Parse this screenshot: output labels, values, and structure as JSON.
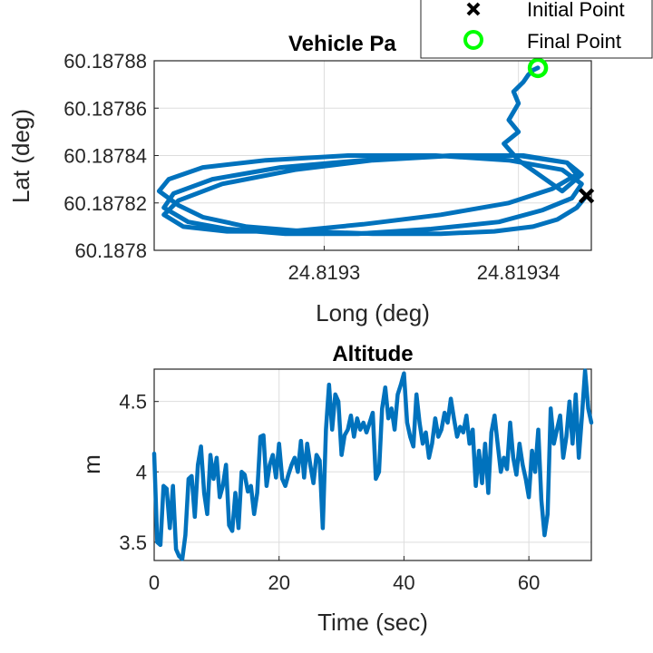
{
  "colors": {
    "series": "#0072BD",
    "grid": "#dddddd",
    "axis": "#262626",
    "final_marker": "#00FF00",
    "initial_marker": "#000000"
  },
  "chart_data": [
    {
      "type": "line",
      "title": "Vehicle Pa",
      "xlabel": "Long (deg)",
      "ylabel": "Lat (deg)",
      "xlim": [
        24.819265,
        24.819355
      ],
      "ylim": [
        60.1878,
        60.18788
      ],
      "xticks": [
        24.8193,
        24.81934
      ],
      "xtick_labels": [
        "24.8193",
        "24.81934"
      ],
      "yticks": [
        60.1878,
        60.18782,
        60.18784,
        60.18786,
        60.18788
      ],
      "ytick_labels": [
        "60.1878",
        "60.18782",
        "60.18784",
        "60.18786",
        "60.18788"
      ],
      "grid": true,
      "legend": {
        "placement": "top-right",
        "entries": [
          {
            "label": "Initial Point",
            "marker": "x"
          },
          {
            "label": "Final Point",
            "marker": "o"
          }
        ]
      },
      "initial_point": {
        "x": 24.819354,
        "y": 60.187823
      },
      "final_point": {
        "x": 24.819344,
        "y": 60.187877
      },
      "series": [
        {
          "x": [
            24.819354,
            24.819352,
            24.819348,
            24.819343,
            24.819335,
            24.819324,
            24.81931,
            24.819296,
            24.819284,
            24.819275,
            24.81927,
            24.819266,
            24.819268,
            24.819275,
            24.819288,
            24.819305,
            24.819323,
            24.819338,
            24.819349,
            24.819353,
            24.819351,
            24.819345,
            24.819336,
            24.819322,
            24.819307,
            24.819292,
            24.81928,
            24.819272,
            24.819267,
            24.819269,
            24.819277,
            24.819291,
            24.819308,
            24.819326,
            24.81934,
            24.81935,
            24.819352,
            24.819347,
            24.819338,
            24.819324,
            24.819308,
            24.819293,
            24.81928,
            24.819271,
            24.819267,
            24.81927,
            24.819279,
            24.819294,
            24.81931,
            24.819327,
            24.819341,
            24.81935,
            24.819353,
            24.819349,
            24.81934,
            24.819337,
            24.81934,
            24.819338,
            24.81934,
            24.819339,
            24.819341,
            24.819342,
            24.819343,
            24.819344
          ],
          "y": [
            60.187823,
            60.187818,
            60.187813,
            60.18781,
            60.187808,
            60.187807,
            60.187807,
            60.187808,
            60.18781,
            60.187814,
            60.187819,
            60.187825,
            60.18783,
            60.187835,
            60.187838,
            60.18784,
            60.18784,
            60.187838,
            60.187834,
            60.187828,
            60.187822,
            60.187817,
            60.187812,
            60.187809,
            60.187807,
            60.187807,
            60.187809,
            60.187812,
            60.187818,
            60.187824,
            60.18783,
            60.187835,
            60.187838,
            60.18784,
            60.18784,
            60.187837,
            60.187832,
            60.187826,
            60.18782,
            60.187815,
            60.187811,
            60.187808,
            60.187808,
            60.18781,
            60.187815,
            60.187821,
            60.187828,
            60.187834,
            60.187838,
            60.18784,
            60.18784,
            60.187837,
            60.187832,
            60.187825,
            60.187838,
            60.187845,
            60.18785,
            60.187855,
            60.187862,
            60.187867,
            60.187871,
            60.187874,
            60.187876,
            60.187877
          ]
        }
      ]
    },
    {
      "type": "line",
      "title": "Altitude",
      "xlabel": "Time (sec)",
      "ylabel": "m",
      "xlim": [
        0,
        70
      ],
      "ylim": [
        3.37,
        4.73
      ],
      "xticks": [
        0,
        20,
        40,
        60
      ],
      "yticks": [
        3.5,
        4,
        4.5
      ],
      "ytick_labels": [
        "3.5",
        "4",
        "4.5"
      ],
      "grid": true,
      "series": [
        {
          "x": [
            0,
            0.5,
            1,
            1.5,
            2,
            2.5,
            3,
            3.5,
            4,
            4.5,
            5,
            5.5,
            6,
            6.5,
            7,
            7.5,
            8,
            8.5,
            9,
            9.5,
            10,
            10.5,
            11,
            11.5,
            12,
            12.5,
            13,
            13.5,
            14,
            14.5,
            15,
            15.5,
            16,
            16.5,
            17,
            17.5,
            18,
            18.5,
            19,
            19.5,
            20,
            20.5,
            21,
            21.5,
            22,
            22.5,
            23,
            23.5,
            24,
            24.5,
            25,
            25.5,
            26,
            26.5,
            27,
            27.5,
            28,
            28.5,
            29,
            29.5,
            30,
            30.5,
            31,
            31.5,
            32,
            32.5,
            33,
            33.5,
            34,
            34.5,
            35,
            35.5,
            36,
            36.5,
            37,
            37.5,
            38,
            38.5,
            39,
            39.5,
            40,
            40.5,
            41,
            41.5,
            42,
            42.5,
            43,
            43.5,
            44,
            44.5,
            45,
            45.5,
            46,
            46.5,
            47,
            47.5,
            48,
            48.5,
            49,
            49.5,
            50,
            50.5,
            51,
            51.5,
            52,
            52.5,
            53,
            53.5,
            54,
            54.5,
            55,
            55.5,
            56,
            56.5,
            57,
            57.5,
            58,
            58.5,
            59,
            59.5,
            60,
            60.5,
            61,
            61.5,
            62,
            62.5,
            63,
            63.5,
            64,
            64.5,
            65,
            65.5,
            66,
            66.5,
            67,
            67.5,
            68,
            68.5,
            69,
            69.5,
            70
          ],
          "y": [
            4.13,
            3.5,
            3.48,
            3.9,
            3.88,
            3.6,
            3.9,
            3.45,
            3.4,
            3.38,
            3.55,
            3.95,
            3.97,
            3.68,
            4.05,
            4.18,
            3.85,
            3.7,
            4.12,
            3.95,
            4.1,
            3.82,
            3.9,
            4.05,
            3.62,
            3.58,
            3.85,
            3.6,
            4.0,
            3.98,
            3.86,
            3.9,
            3.7,
            3.85,
            4.25,
            4.26,
            3.9,
            4.05,
            4.12,
            3.96,
            4.2,
            3.95,
            3.9,
            3.98,
            4.05,
            4.1,
            4.0,
            4.22,
            3.96,
            4.2,
            4.05,
            3.92,
            4.12,
            4.08,
            3.6,
            4.3,
            4.62,
            4.3,
            4.55,
            4.5,
            4.12,
            4.26,
            4.3,
            4.4,
            4.25,
            4.38,
            4.3,
            4.35,
            4.28,
            4.35,
            4.42,
            3.95,
            4.0,
            4.45,
            4.6,
            4.38,
            4.45,
            4.3,
            4.55,
            4.62,
            4.7,
            4.35,
            4.25,
            4.18,
            4.55,
            4.35,
            4.2,
            4.28,
            4.1,
            4.2,
            4.38,
            4.25,
            4.3,
            4.42,
            4.35,
            4.52,
            4.38,
            4.25,
            4.32,
            4.28,
            4.4,
            4.2,
            4.3,
            3.9,
            4.15,
            3.92,
            4.2,
            3.85,
            4.28,
            4.4,
            4.2,
            4.0,
            4.1,
            4.02,
            4.35,
            4.1,
            3.98,
            4.2,
            4.05,
            3.95,
            3.82,
            4.15,
            4.0,
            4.3,
            3.8,
            3.55,
            3.7,
            4.45,
            4.2,
            4.3,
            4.4,
            4.1,
            4.25,
            4.5,
            4.2,
            4.55,
            4.1,
            4.4,
            4.72,
            4.45,
            4.35
          ]
        }
      ]
    }
  ]
}
